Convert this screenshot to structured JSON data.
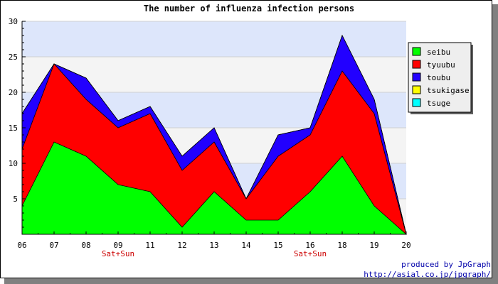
{
  "chart_data": {
    "type": "area",
    "stacked": true,
    "title": "The number of influenza infection persons",
    "xlabel": "",
    "ylabel": "",
    "categories": [
      "06",
      "07",
      "08",
      "09",
      "11",
      "12",
      "13",
      "14",
      "15",
      "16",
      "18",
      "19",
      "20"
    ],
    "ylim": [
      0,
      30
    ],
    "yticks": [
      5,
      10,
      15,
      20,
      25,
      30
    ],
    "grid": true,
    "legend_position": "right",
    "series": [
      {
        "name": "seibu",
        "color": "#00ff00",
        "values": [
          4,
          13,
          11,
          7,
          6,
          1,
          6,
          2,
          2,
          6,
          11,
          4,
          0
        ]
      },
      {
        "name": "tyuubu",
        "color": "#ff0000",
        "values": [
          8,
          11,
          8,
          8,
          11,
          8,
          7,
          3,
          9,
          8,
          12,
          13,
          0
        ]
      },
      {
        "name": "toubu",
        "color": "#2200ff",
        "values": [
          5,
          0,
          3,
          1,
          1,
          2,
          2,
          0,
          3,
          1,
          5,
          2,
          0
        ]
      },
      {
        "name": "tsukigase",
        "color": "#ffff00",
        "values": [
          0,
          0,
          0,
          0,
          0,
          0,
          0,
          0,
          0,
          0,
          0,
          0,
          0
        ]
      },
      {
        "name": "tsuge",
        "color": "#00ffff",
        "values": [
          0,
          0,
          0,
          0,
          0,
          0,
          0,
          0,
          0,
          0,
          0,
          0,
          0
        ]
      }
    ],
    "annotations": [
      {
        "text": "Sat+Sun",
        "category": "09"
      },
      {
        "text": "Sat+Sun",
        "category": "16"
      }
    ]
  },
  "credit": {
    "line1": "produced by JpGraph",
    "line2": "http://asial.co.jp/jpgraph/"
  }
}
